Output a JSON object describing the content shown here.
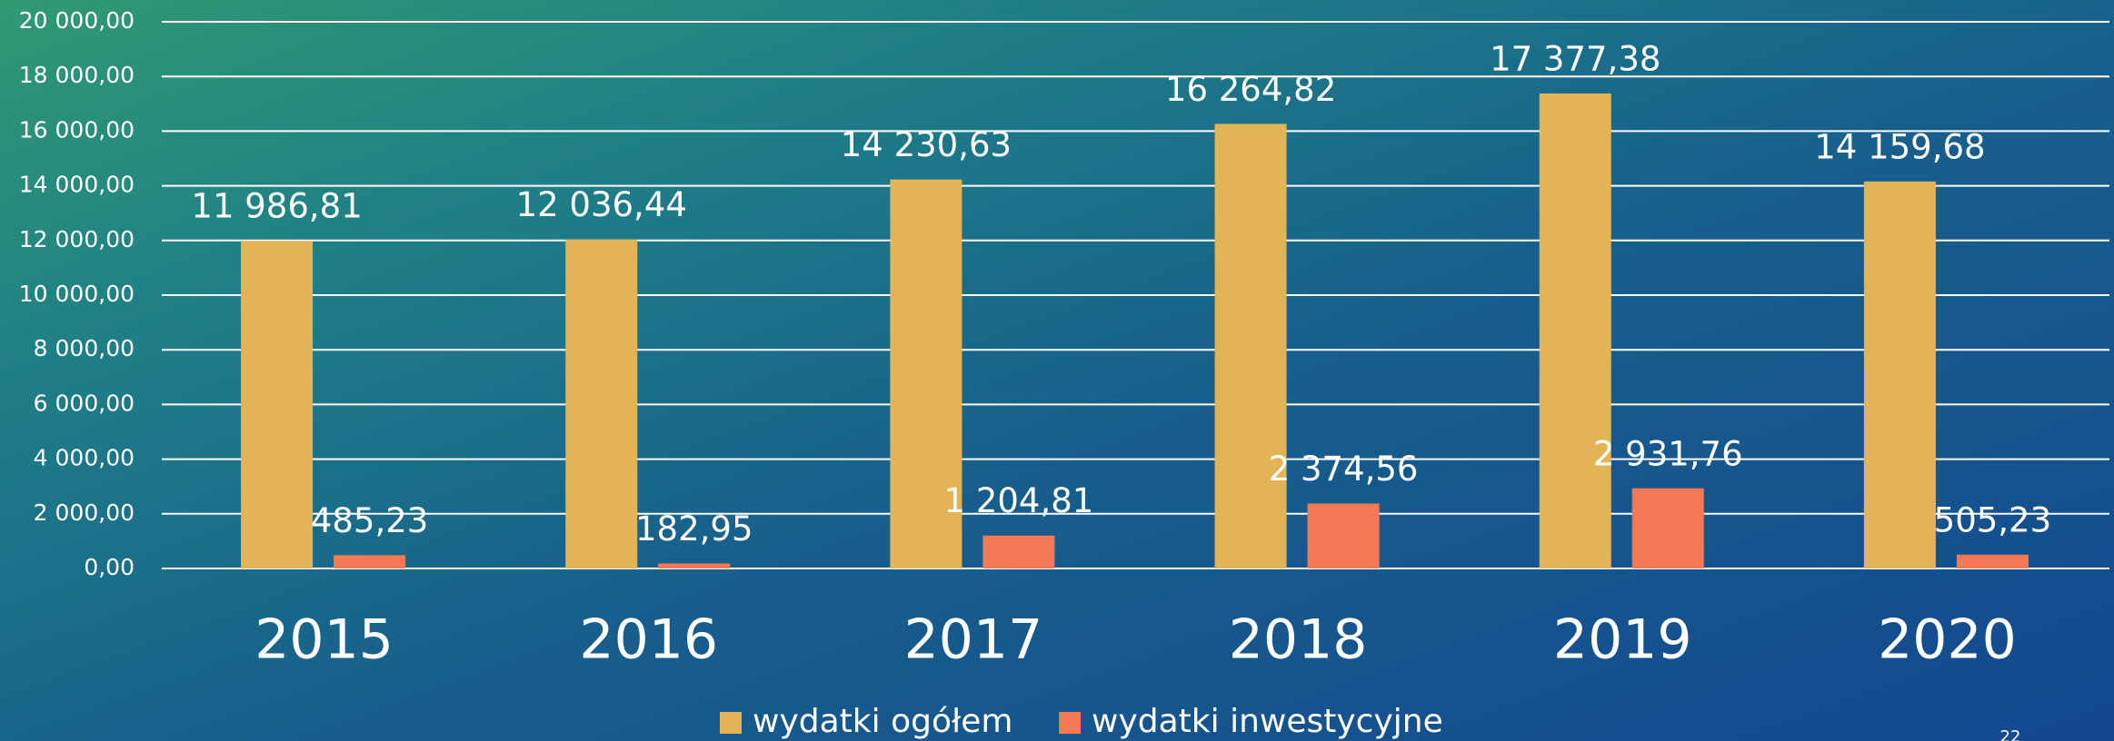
{
  "chart_data": {
    "type": "bar",
    "categories": [
      "2015",
      "2016",
      "2017",
      "2018",
      "2019",
      "2020"
    ],
    "series": [
      {
        "name": "wydatki ogółem",
        "color": "#e3b456",
        "values": [
          11986.81,
          12036.44,
          14230.63,
          16264.82,
          17377.38,
          14159.68
        ],
        "value_labels": [
          "11 986,81",
          "12 036,44",
          "14 230,63",
          "16 264,82",
          "17 377,38",
          "14 159,68"
        ]
      },
      {
        "name": "wydatki inwestycyjne",
        "color": "#f47a56",
        "values": [
          485.23,
          182.95,
          1204.81,
          2374.56,
          2931.76,
          505.23
        ],
        "value_labels": [
          "485,23",
          "182,95",
          "1 204,81",
          "2 374,56",
          "2 931,76",
          "505,23"
        ]
      }
    ],
    "ylim": [
      0,
      20000
    ],
    "yticks": [
      {
        "value": 0,
        "label": "0,00"
      },
      {
        "value": 2000,
        "label": "2 000,00"
      },
      {
        "value": 4000,
        "label": "4 000,00"
      },
      {
        "value": 6000,
        "label": "6 000,00"
      },
      {
        "value": 8000,
        "label": "8 000,00"
      },
      {
        "value": 10000,
        "label": "10 000,00"
      },
      {
        "value": 12000,
        "label": "12 000,00"
      },
      {
        "value": 14000,
        "label": "14 000,00"
      },
      {
        "value": 16000,
        "label": "16 000,00"
      },
      {
        "value": 18000,
        "label": "18 000,00"
      },
      {
        "value": 20000,
        "label": "20 000,00"
      }
    ],
    "grid": true,
    "legend": "bottom"
  },
  "slide_number": "22"
}
